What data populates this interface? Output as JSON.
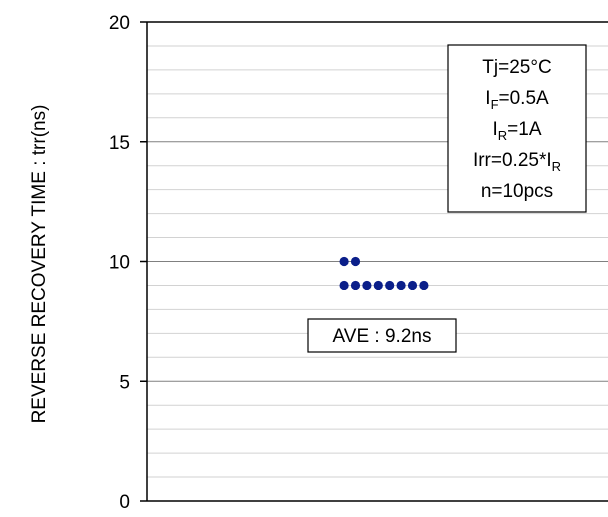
{
  "chart_data": {
    "type": "scatter",
    "ylabel": "REVERSE RECOVERY TIME : trr(ns)",
    "xlabel": "",
    "ylim": [
      0,
      20
    ],
    "yticks": [
      0,
      5,
      10,
      15,
      20
    ],
    "minor_grid_step": 1,
    "grid": true,
    "series": [
      {
        "y": [
          10,
          10,
          9,
          9,
          9,
          9,
          9,
          9,
          9,
          9
        ],
        "color": "#0b1f8a"
      }
    ],
    "conditions": [
      {
        "base": "Tj=25°C",
        "sub": "",
        "rest": ""
      },
      {
        "base": "I",
        "sub": "F",
        "rest": "=0.5A"
      },
      {
        "base": "I",
        "sub": "R",
        "rest": "=1A"
      },
      {
        "base": "Irr=0.25*I",
        "sub": "R",
        "rest": ""
      },
      {
        "base": "n=10pcs",
        "sub": "",
        "rest": ""
      }
    ],
    "annotation": "AVE : 9.2ns"
  }
}
